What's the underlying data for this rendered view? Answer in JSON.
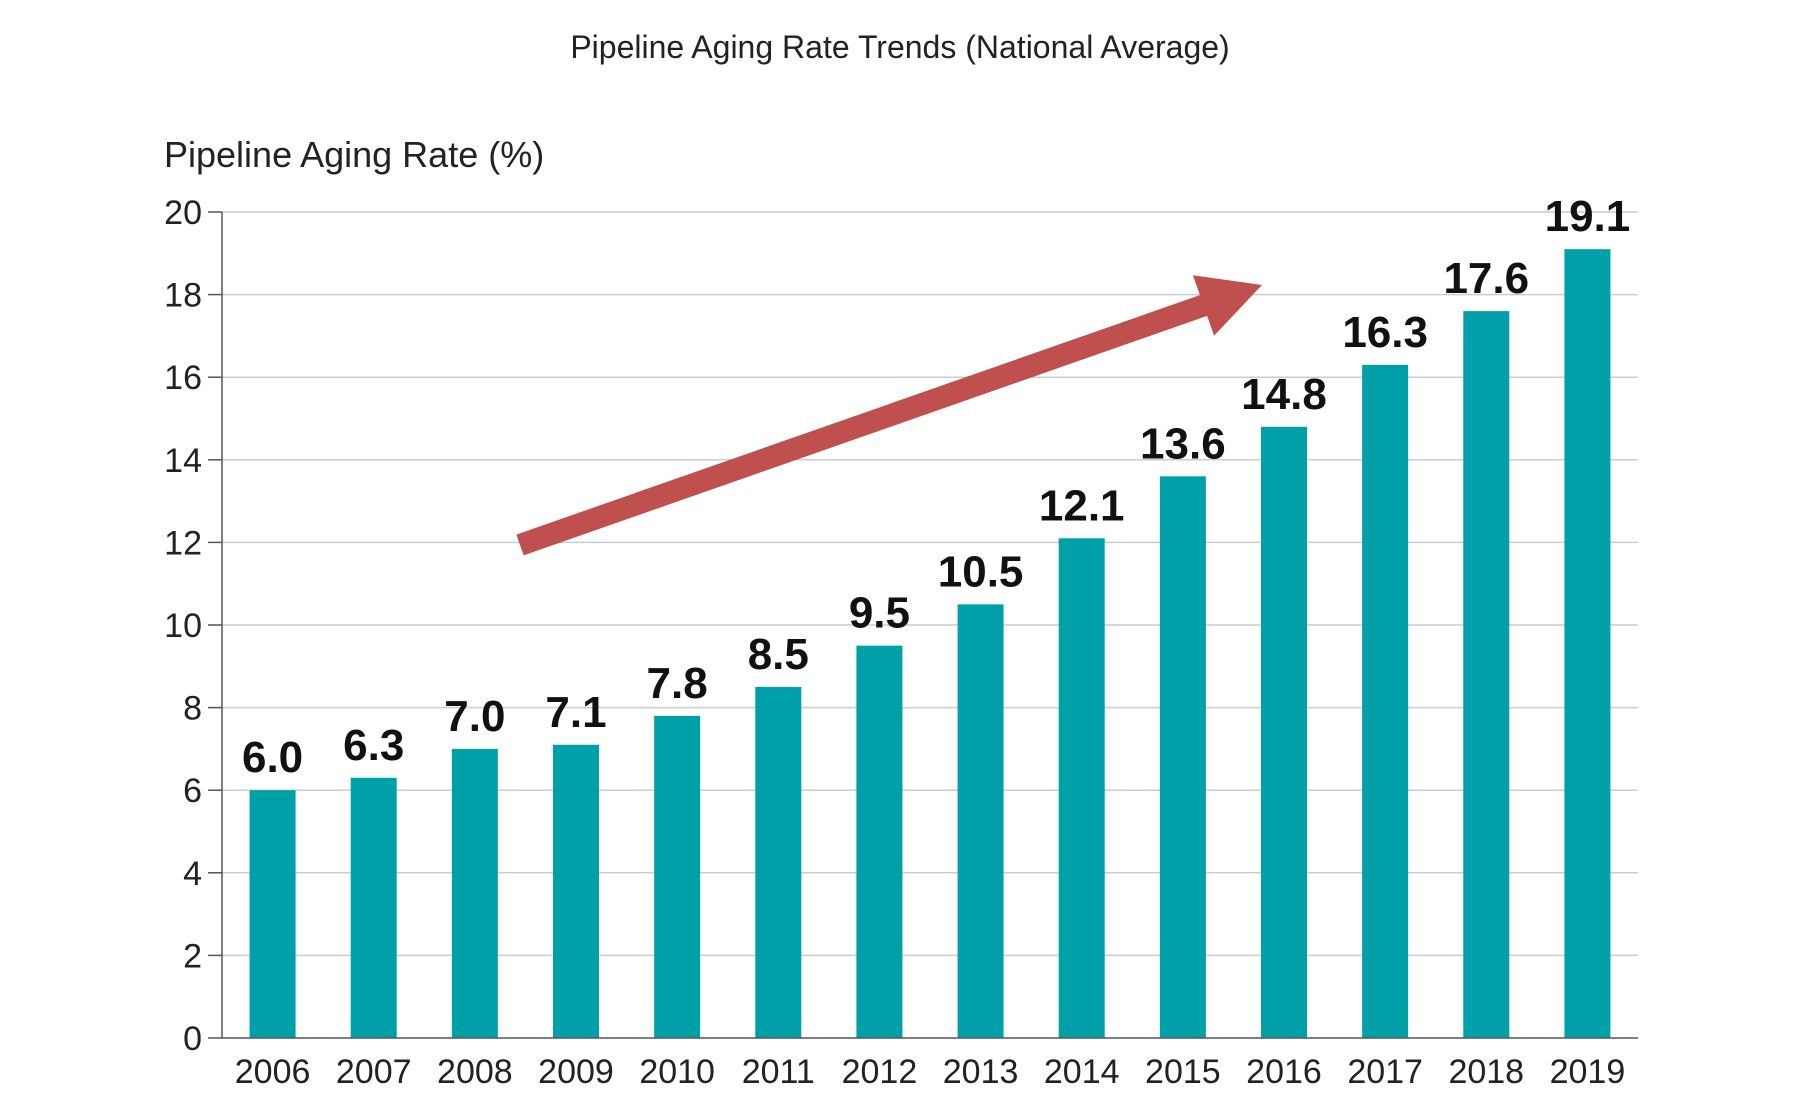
{
  "chart_data": {
    "type": "bar",
    "title": "Pipeline Aging Rate Trends (National Average)",
    "ylabel": "Pipeline Aging Rate (%)",
    "xlabel": "",
    "categories": [
      "2006",
      "2007",
      "2008",
      "2009",
      "2010",
      "2011",
      "2012",
      "2013",
      "2014",
      "2015",
      "2016",
      "2017",
      "2018",
      "2019"
    ],
    "values": [
      6.0,
      6.3,
      7.0,
      7.1,
      7.8,
      8.5,
      9.5,
      10.5,
      12.1,
      13.6,
      14.8,
      16.3,
      17.6,
      19.1
    ],
    "value_labels": [
      "6.0",
      "6.3",
      "7.0",
      "7.1",
      "7.8",
      "8.5",
      "9.5",
      "10.5",
      "12.1",
      "13.6",
      "14.8",
      "16.3",
      "17.6",
      "19.1"
    ],
    "ylim": [
      0,
      20
    ],
    "yticks": [
      0,
      2,
      4,
      6,
      8,
      10,
      12,
      14,
      16,
      18,
      20
    ],
    "grid": true,
    "legend": "none",
    "colors": {
      "bar": "#00a0a8",
      "arrow": "#c0504d",
      "grid": "#cccccc",
      "axis": "#555555"
    },
    "annotation": "trend-arrow"
  }
}
